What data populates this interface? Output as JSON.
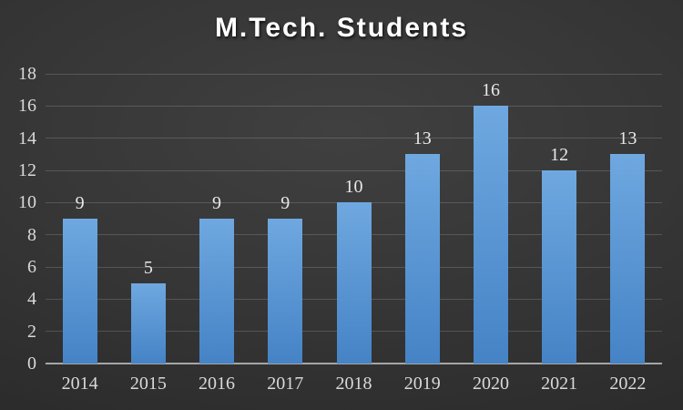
{
  "chart_data": {
    "type": "bar",
    "title": "M.Tech. Students",
    "categories": [
      "2014",
      "2015",
      "2016",
      "2017",
      "2018",
      "2019",
      "2020",
      "2021",
      "2022"
    ],
    "values": [
      9,
      5,
      9,
      9,
      10,
      13,
      16,
      12,
      13
    ],
    "xlabel": "",
    "ylabel": "",
    "ylim": [
      0,
      18
    ],
    "yticks": [
      0,
      2,
      4,
      6,
      8,
      10,
      12,
      14,
      16,
      18
    ],
    "grid": true,
    "legend": false,
    "data_labels": true
  },
  "colors": {
    "title": "#FFFFFF",
    "bar_top": "#6FA8E0",
    "bar_bottom": "#4583C6",
    "background_center": "#404040",
    "background_edge": "#262626",
    "gridline": "rgba(255,255,255,0.16)",
    "axis_line": "#A6A6A6",
    "tick_label": "#D9D9D9",
    "data_label": "#E8E8E8"
  }
}
